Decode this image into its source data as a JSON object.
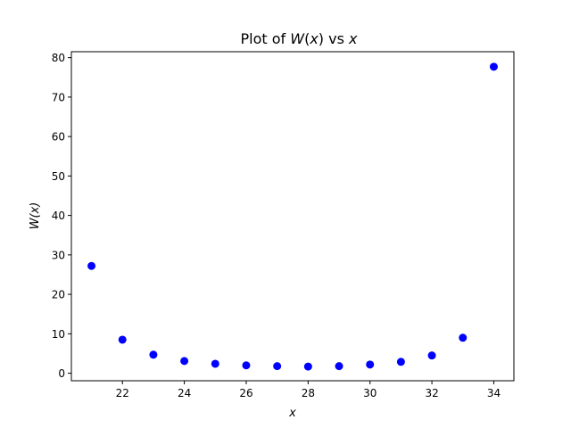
{
  "chart_data": {
    "type": "scatter",
    "title": "Plot of W(x) vs x",
    "title_parts": {
      "prefix": "Plot of ",
      "func": "W",
      "open": "(",
      "var": "x",
      "close": ")",
      "mid": " vs ",
      "var2": "x"
    },
    "xlabel": "x",
    "ylabel": "W(x)",
    "xlim": [
      20.35,
      34.65
    ],
    "ylim": [
      -1.9,
      81.5
    ],
    "x_ticks": [
      22,
      24,
      26,
      28,
      30,
      32,
      34
    ],
    "y_ticks": [
      0,
      10,
      20,
      30,
      40,
      50,
      60,
      70,
      80
    ],
    "grid": false,
    "marker_color": "#0000ff",
    "series": [
      {
        "x": [
          21,
          22,
          23,
          24,
          25,
          26,
          27,
          28,
          29,
          30,
          31,
          32,
          33,
          34
        ],
        "values": [
          27.2,
          8.5,
          4.7,
          3.1,
          2.4,
          2.0,
          1.8,
          1.7,
          1.8,
          2.2,
          2.9,
          4.5,
          9.0,
          77.7
        ]
      }
    ]
  }
}
